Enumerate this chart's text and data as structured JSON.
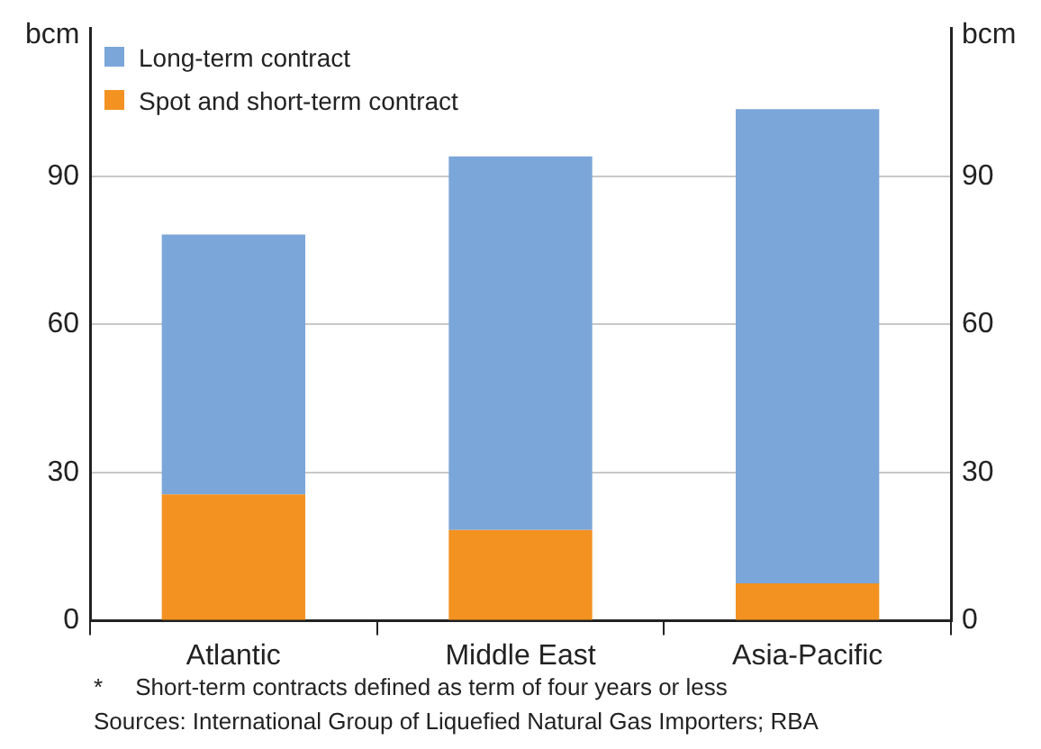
{
  "chart_data": {
    "type": "bar",
    "stacked": true,
    "categories": [
      "Atlantic",
      "Middle East",
      "Asia-Pacific"
    ],
    "series": [
      {
        "name": "Spot and short-term contract",
        "color": "#f39220",
        "values": [
          25.6,
          18.4,
          7.6
        ]
      },
      {
        "name": "Long-term contract",
        "color": "#7ba6d9",
        "values": [
          52.6,
          75.6,
          96.0
        ]
      }
    ],
    "ylabel": "bcm",
    "y2label": "bcm",
    "ylim": [
      0,
      120
    ],
    "yticks": [
      0,
      30,
      60,
      90
    ],
    "y2lim": [
      0,
      120
    ],
    "y2ticks": [
      0,
      30,
      60,
      90
    ],
    "grid": "y",
    "legend": "top left",
    "annotations": [
      "*     Short-term contracts defined as term of four years or less",
      "Sources: International Group of Liquefied Natural Gas Importers; RBA"
    ]
  }
}
